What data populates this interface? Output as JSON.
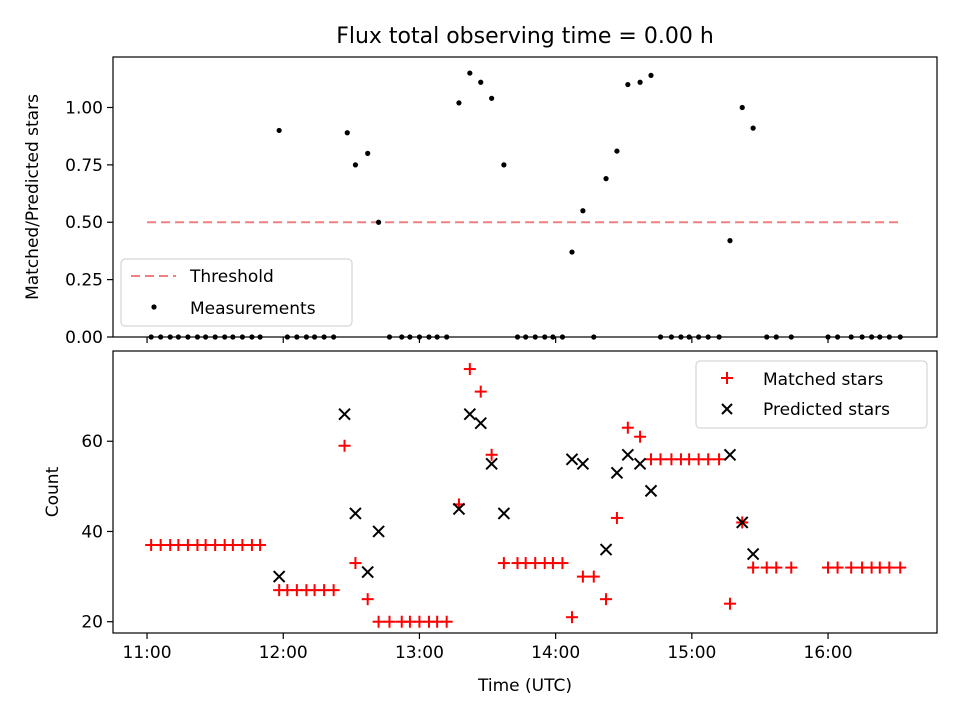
{
  "chart_data": [
    {
      "type": "scatter",
      "title": "Flux total observing time = 0.00 h",
      "xlabel": "",
      "ylabel": "Matched/Predicted stars",
      "xlim": [
        10.75,
        16.8
      ],
      "ylim": [
        0,
        1.22
      ],
      "y_ticks": [
        0.0,
        0.25,
        0.5,
        0.75,
        1.0
      ],
      "y_tick_labels": [
        "0.00",
        "0.25",
        "0.50",
        "0.75",
        "1.00"
      ],
      "legend_position": "lower-left",
      "series": [
        {
          "name": "Threshold",
          "style": "dashed-line",
          "color": "#f08080",
          "x": [
            11.0,
            16.53
          ],
          "y": [
            0.5,
            0.5
          ]
        },
        {
          "name": "Measurements",
          "style": "dot",
          "color": "#000000",
          "x": [
            11.03,
            11.1,
            11.17,
            11.23,
            11.3,
            11.37,
            11.43,
            11.5,
            11.57,
            11.63,
            11.7,
            11.77,
            11.83,
            11.97,
            12.03,
            12.1,
            12.17,
            12.23,
            12.3,
            12.37,
            12.47,
            12.53,
            12.62,
            12.7,
            12.78,
            12.87,
            12.93,
            13.0,
            13.07,
            13.13,
            13.2,
            13.29,
            13.37,
            13.45,
            13.53,
            13.62,
            13.72,
            13.78,
            13.85,
            13.92,
            13.98,
            14.05,
            14.12,
            14.2,
            14.28,
            14.37,
            14.45,
            14.53,
            14.62,
            14.7,
            14.77,
            14.85,
            14.92,
            14.98,
            15.05,
            15.12,
            15.2,
            15.28,
            15.37,
            15.45,
            15.55,
            15.62,
            15.73,
            16.0,
            16.07,
            16.17,
            16.25,
            16.32,
            16.38,
            16.45,
            16.53
          ],
          "y": [
            0,
            0,
            0,
            0,
            0,
            0,
            0,
            0,
            0,
            0,
            0,
            0,
            0,
            0.9,
            0,
            0,
            0,
            0,
            0,
            0,
            0.89,
            0.75,
            0.8,
            0.5,
            0,
            0,
            0,
            0,
            0,
            0,
            0,
            1.02,
            1.15,
            1.11,
            1.04,
            0.75,
            0,
            0,
            0,
            0,
            0,
            0,
            0.37,
            0.55,
            0,
            0.69,
            0.81,
            1.1,
            1.11,
            1.14,
            0,
            0,
            0,
            0,
            0,
            0,
            0,
            0.42,
            1.0,
            0.91,
            0,
            0,
            0,
            0,
            0,
            0,
            0,
            0,
            0,
            0,
            0
          ]
        }
      ]
    },
    {
      "type": "scatter",
      "title": "",
      "xlabel": "Time (UTC)",
      "ylabel": "Count",
      "xlim": [
        10.75,
        16.8
      ],
      "ylim": [
        17.5,
        80
      ],
      "y_ticks": [
        20,
        40,
        60
      ],
      "y_tick_labels": [
        "20",
        "40",
        "60"
      ],
      "x_ticks": [
        11,
        12,
        13,
        14,
        15,
        16
      ],
      "x_tick_labels": [
        "11:00",
        "12:00",
        "13:00",
        "14:00",
        "15:00",
        "16:00"
      ],
      "legend_position": "upper-right",
      "series": [
        {
          "name": "Matched stars",
          "style": "plus",
          "color": "#ff0000",
          "x": [
            11.03,
            11.1,
            11.17,
            11.23,
            11.3,
            11.37,
            11.43,
            11.5,
            11.57,
            11.63,
            11.7,
            11.77,
            11.83,
            11.97,
            12.03,
            12.1,
            12.17,
            12.23,
            12.3,
            12.37,
            12.45,
            12.53,
            12.62,
            12.7,
            12.78,
            12.87,
            12.93,
            13.0,
            13.07,
            13.13,
            13.2,
            13.29,
            13.37,
            13.45,
            13.53,
            13.62,
            13.72,
            13.78,
            13.85,
            13.92,
            13.98,
            14.05,
            14.12,
            14.2,
            14.28,
            14.37,
            14.45,
            14.53,
            14.62,
            14.7,
            14.77,
            14.85,
            14.92,
            14.98,
            15.05,
            15.12,
            15.2,
            15.28,
            15.37,
            15.45,
            15.55,
            15.62,
            15.73,
            16.0,
            16.07,
            16.17,
            16.25,
            16.32,
            16.38,
            16.45,
            16.53
          ],
          "y": [
            37,
            37,
            37,
            37,
            37,
            37,
            37,
            37,
            37,
            37,
            37,
            37,
            37,
            27,
            27,
            27,
            27,
            27,
            27,
            27,
            59,
            33,
            25,
            20,
            20,
            20,
            20,
            20,
            20,
            20,
            20,
            46,
            76,
            71,
            57,
            33,
            33,
            33,
            33,
            33,
            33,
            33,
            21,
            30,
            30,
            25,
            43,
            63,
            61,
            56,
            56,
            56,
            56,
            56,
            56,
            56,
            56,
            24,
            42,
            32,
            32,
            32,
            32,
            32,
            32,
            32,
            32,
            32,
            32,
            32,
            32
          ]
        },
        {
          "name": "Predicted stars",
          "style": "cross",
          "color": "#000000",
          "x": [
            11.97,
            12.45,
            12.53,
            12.62,
            12.7,
            13.29,
            13.37,
            13.45,
            13.53,
            13.62,
            14.12,
            14.2,
            14.37,
            14.45,
            14.53,
            14.62,
            14.7,
            15.28,
            15.37,
            15.45
          ],
          "y": [
            30,
            66,
            44,
            31,
            40,
            45,
            66,
            64,
            55,
            44,
            56,
            55,
            36,
            53,
            57,
            55,
            49,
            57,
            42,
            35
          ]
        }
      ]
    }
  ]
}
